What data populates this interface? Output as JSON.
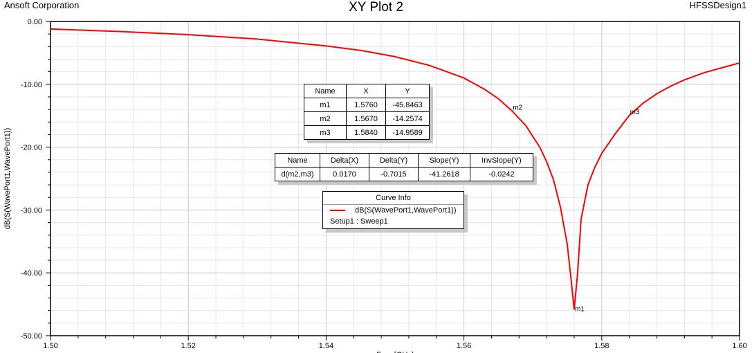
{
  "header": {
    "company": "Ansoft Corporation",
    "title": "XY Plot 2",
    "design": "HFSSDesign1"
  },
  "marker_table": {
    "headers": [
      "Name",
      "X",
      "Y"
    ],
    "rows": [
      [
        "m1",
        "1.5760",
        "-45.8463"
      ],
      [
        "m2",
        "1.5670",
        "-14.2574"
      ],
      [
        "m3",
        "1.5840",
        "-14.9589"
      ]
    ]
  },
  "delta_table": {
    "headers": [
      "Name",
      "Delta(X)",
      "Delta(Y)",
      "Slope(Y)",
      "InvSlope(Y)"
    ],
    "rows": [
      [
        "d(m2,m3)",
        "0.0170",
        "-0.7015",
        "-41.2618",
        "-0.0242"
      ]
    ]
  },
  "curve_info": {
    "title": "Curve Info",
    "name": "dB(S(WavePort1,WavePort1))",
    "setup": "Setup1 : Sweep1"
  },
  "chart_data": {
    "type": "line",
    "title": "XY Plot 2",
    "xlabel": "Freq [GHz]",
    "ylabel": "dB(S(WavePort1,WavePort1))",
    "xlim": [
      1.5,
      1.6
    ],
    "ylim": [
      -50,
      0
    ],
    "xticks": [
      "1.50",
      "1.52",
      "1.54",
      "1.56",
      "1.58",
      "1.60"
    ],
    "yticks": [
      "0.00",
      "-10.00",
      "-20.00",
      "-30.00",
      "-40.00",
      "-50.00"
    ],
    "grid": true,
    "series": [
      {
        "name": "dB(S(WavePort1,WavePort1))",
        "color": "#ff0000",
        "x": [
          1.5,
          1.51,
          1.52,
          1.53,
          1.54,
          1.545,
          1.55,
          1.555,
          1.56,
          1.563,
          1.565,
          1.567,
          1.569,
          1.571,
          1.572,
          1.573,
          1.574,
          1.575,
          1.5755,
          1.576,
          1.5765,
          1.577,
          1.578,
          1.579,
          1.58,
          1.582,
          1.584,
          1.586,
          1.588,
          1.59,
          1.592,
          1.595,
          1.598,
          1.6
        ],
        "y": [
          -1.2,
          -1.6,
          -2.1,
          -2.8,
          -3.9,
          -4.6,
          -5.6,
          -7.0,
          -9.0,
          -10.8,
          -12.3,
          -14.26,
          -16.6,
          -20.0,
          -22.3,
          -25.2,
          -29.5,
          -35.5,
          -40.5,
          -45.85,
          -40,
          -31.5,
          -26,
          -23.2,
          -21.0,
          -17.8,
          -14.96,
          -13.0,
          -11.5,
          -10.3,
          -9.3,
          -8.1,
          -7.2,
          -6.6
        ]
      }
    ],
    "markers": [
      {
        "name": "m1",
        "x": 1.576,
        "y": -45.8463
      },
      {
        "name": "m2",
        "x": 1.567,
        "y": -14.2574
      },
      {
        "name": "m3",
        "x": 1.584,
        "y": -14.9589
      }
    ]
  }
}
